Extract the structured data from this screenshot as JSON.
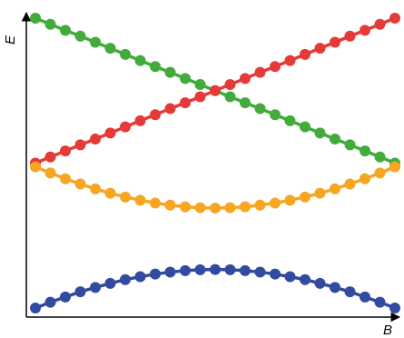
{
  "chart_data": {
    "type": "line",
    "title": "",
    "xlabel": "B",
    "ylabel": "E",
    "grid": false,
    "legend": "none",
    "xlim": [
      0,
      1
    ],
    "ylim": [
      0,
      1
    ],
    "x": [
      0,
      0.0417,
      0.0833,
      0.125,
      0.1667,
      0.2083,
      0.25,
      0.2917,
      0.3333,
      0.375,
      0.4167,
      0.4583,
      0.5,
      0.5417,
      0.5833,
      0.625,
      0.6667,
      0.7083,
      0.75,
      0.7917,
      0.8333,
      0.875,
      0.9167,
      0.9583,
      1
    ],
    "series": [
      {
        "color": "#43ab3c",
        "values": [
          1.0,
          0.979,
          0.958,
          0.938,
          0.917,
          0.896,
          0.875,
          0.854,
          0.833,
          0.813,
          0.792,
          0.771,
          0.75,
          0.729,
          0.708,
          0.688,
          0.667,
          0.646,
          0.625,
          0.604,
          0.583,
          0.563,
          0.542,
          0.521,
          0.5
        ]
      },
      {
        "color": "#e43a38",
        "values": [
          0.5,
          0.521,
          0.542,
          0.563,
          0.583,
          0.604,
          0.625,
          0.646,
          0.667,
          0.688,
          0.708,
          0.729,
          0.75,
          0.771,
          0.792,
          0.813,
          0.833,
          0.854,
          0.875,
          0.896,
          0.917,
          0.938,
          0.958,
          0.979,
          1.0
        ]
      },
      {
        "color": "#f6a623",
        "values": [
          0.487,
          0.466,
          0.446,
          0.428,
          0.411,
          0.396,
          0.383,
          0.372,
          0.362,
          0.355,
          0.349,
          0.346,
          0.345,
          0.346,
          0.349,
          0.355,
          0.362,
          0.372,
          0.383,
          0.396,
          0.411,
          0.428,
          0.446,
          0.466,
          0.487
        ]
      },
      {
        "color": "#324aa0",
        "values": [
          0.0,
          0.02,
          0.038,
          0.056,
          0.071,
          0.085,
          0.098,
          0.108,
          0.117,
          0.124,
          0.129,
          0.132,
          0.133,
          0.132,
          0.129,
          0.124,
          0.117,
          0.108,
          0.098,
          0.085,
          0.071,
          0.056,
          0.038,
          0.02,
          0.0
        ]
      }
    ]
  }
}
